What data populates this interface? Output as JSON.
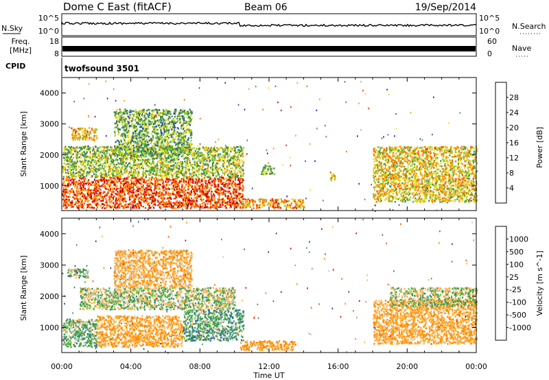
{
  "header": {
    "station": "Dome C East (fitACF)",
    "beam": "Beam 06",
    "date": "19/Sep/2014"
  },
  "strip": {
    "nsky_label": "N.Sky",
    "nsky_top": "10^5",
    "nsky_bottom": "10^0",
    "nsearch_label": "N.Search",
    "right_top": "10^5",
    "right_bottom": "10^0",
    "freq_label": "Freq.",
    "freq_unit": "[MHz]",
    "freq_top": "18",
    "freq_bottom": "8",
    "nave_label": "Nave",
    "nave_top": "60",
    "nave_bottom": "0",
    "cpid_label": "CPID",
    "cpid_value": "twofsound 3501"
  },
  "xaxis": {
    "label": "Time UT",
    "ticks": [
      "00:00",
      "04:00",
      "08:00",
      "12:00",
      "16:00",
      "20:00",
      "00:00"
    ]
  },
  "colors": {
    "power": [
      "#1a1adc",
      "#2a4ea8",
      "#3f7f5a",
      "#3c9e3c",
      "#9acd32",
      "#f0dc20",
      "#ff9a00",
      "#ff6a00",
      "#e63200",
      "#cc0000"
    ],
    "velocity": [
      "#1f3ca0",
      "#2f6fa0",
      "#3e9a5a",
      "#5ec83c",
      "#c8c8c8",
      "#ffb347",
      "#ff8c00",
      "#ff5a00",
      "#e60000"
    ]
  },
  "chart_data": [
    {
      "type": "heatmap",
      "title": "Power",
      "ylabel": "Slant Range [km]",
      "xlabel": "",
      "ylim": [
        200,
        4500
      ],
      "yticks": [
        1000,
        2000,
        3000,
        4000
      ],
      "xlim_hours": [
        0,
        24
      ],
      "colorbar": {
        "label": "Power [dB]",
        "ticks": [
          4,
          8,
          12,
          16,
          20,
          24,
          28
        ],
        "range": [
          0,
          32
        ]
      },
      "regions": [
        {
          "t": [
            0,
            10.5
          ],
          "r": [
            300,
            1300
          ],
          "value": 26
        },
        {
          "t": [
            0,
            10.5
          ],
          "r": [
            1300,
            2300
          ],
          "value": 14
        },
        {
          "t": [
            0.5,
            2
          ],
          "r": [
            2500,
            2900
          ],
          "value": 20
        },
        {
          "t": [
            3,
            7.5
          ],
          "r": [
            2000,
            3500
          ],
          "value": 12
        },
        {
          "t": [
            10.3,
            14
          ],
          "r": [
            300,
            600
          ],
          "value": 22
        },
        {
          "t": [
            11.5,
            12.3
          ],
          "r": [
            1400,
            1700
          ],
          "value": 12
        },
        {
          "t": [
            15.5,
            15.8
          ],
          "r": [
            1200,
            1500
          ],
          "value": 18
        },
        {
          "t": [
            18,
            24
          ],
          "r": [
            500,
            2300
          ],
          "value": 18
        }
      ]
    },
    {
      "type": "heatmap",
      "title": "Velocity",
      "ylabel": "Slant Range [km]",
      "xlabel": "Time UT",
      "ylim": [
        200,
        4500
      ],
      "yticks": [
        1000,
        2000,
        3000,
        4000
      ],
      "xlim_hours": [
        0,
        24
      ],
      "colorbar": {
        "label": "Velocity [m s^-1]",
        "ticks": [
          "1000",
          "500",
          "100",
          "25",
          "-25",
          "-100",
          "-500",
          "-1000"
        ]
      },
      "regions": [
        {
          "t": [
            0,
            2
          ],
          "r": [
            400,
            1300
          ],
          "value": 100
        },
        {
          "t": [
            2,
            7
          ],
          "r": [
            400,
            1400
          ],
          "value": -300
        },
        {
          "t": [
            7,
            10.5
          ],
          "r": [
            600,
            1600
          ],
          "value": 150
        },
        {
          "t": [
            1,
            10
          ],
          "r": [
            1600,
            2300
          ],
          "value": 0
        },
        {
          "t": [
            3,
            7.5
          ],
          "r": [
            2300,
            3500
          ],
          "value": -250
        },
        {
          "t": [
            0.3,
            1.5
          ],
          "r": [
            2600,
            2900
          ],
          "value": 100
        },
        {
          "t": [
            10.3,
            13.5
          ],
          "r": [
            300,
            600
          ],
          "value": -400
        },
        {
          "t": [
            18,
            24
          ],
          "r": [
            500,
            1900
          ],
          "value": -300
        },
        {
          "t": [
            19,
            24
          ],
          "r": [
            1700,
            2300
          ],
          "value": 0
        }
      ]
    }
  ]
}
